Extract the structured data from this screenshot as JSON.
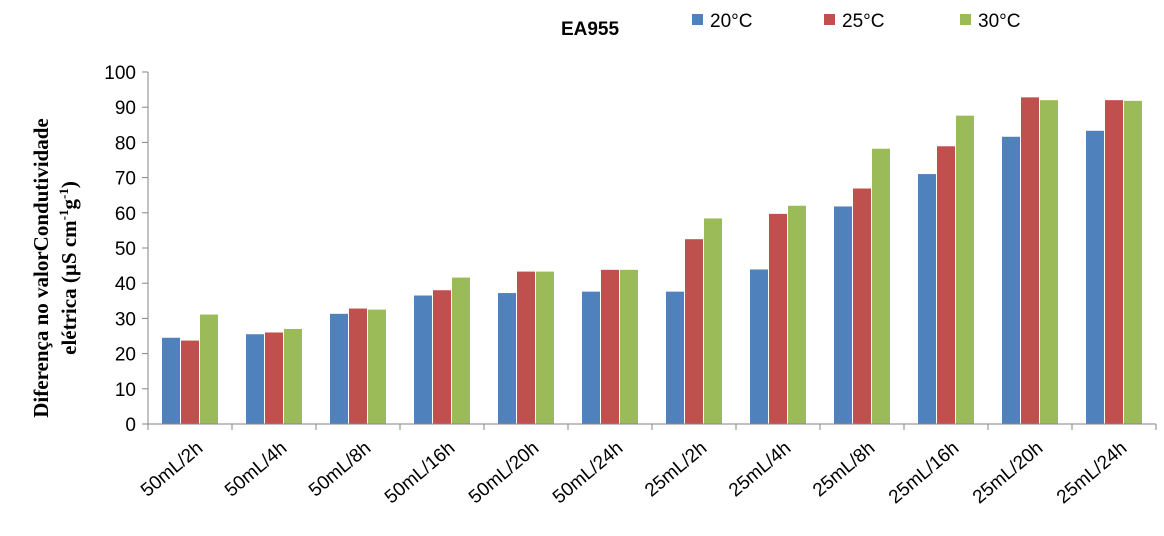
{
  "chart_data": {
    "type": "bar",
    "title": "EA955",
    "ylabel_line1": "Diferença no valorCondutividade",
    "ylabel_line2_prefix": "elétrica (µS cm",
    "ylabel_sup1": "-1",
    "ylabel_mid": "g",
    "ylabel_sup2": "-1",
    "ylabel_suffix": ")",
    "ylim": [
      0,
      100
    ],
    "yticks": [
      0,
      10,
      20,
      30,
      40,
      50,
      60,
      70,
      80,
      90,
      100
    ],
    "categories": [
      "50mL/2h",
      "50mL/4h",
      "50mL/8h",
      "50mL/16h",
      "50mL/20h",
      "50mL/24h",
      "25mL/2h",
      "25mL/4h",
      "25mL/8h",
      "25mL/16h",
      "25mL/20h",
      "25mL/24h"
    ],
    "series": [
      {
        "name": "20°C",
        "color": "#4f81bd",
        "values": [
          24.5,
          25.5,
          31.3,
          36.5,
          37.2,
          37.6,
          37.6,
          43.9,
          61.8,
          71.0,
          81.6,
          83.3
        ]
      },
      {
        "name": "25°C",
        "color": "#c0504d",
        "values": [
          23.7,
          26.0,
          32.8,
          38.0,
          43.3,
          43.8,
          52.5,
          59.7,
          66.9,
          78.9,
          92.8,
          92.0
        ]
      },
      {
        "name": "30°C",
        "color": "#9bbb59",
        "values": [
          31.1,
          27.0,
          32.5,
          41.6,
          43.3,
          43.8,
          58.4,
          62.0,
          78.2,
          87.6,
          92.0,
          91.8
        ]
      }
    ],
    "legend_position": "top",
    "grid": false
  }
}
